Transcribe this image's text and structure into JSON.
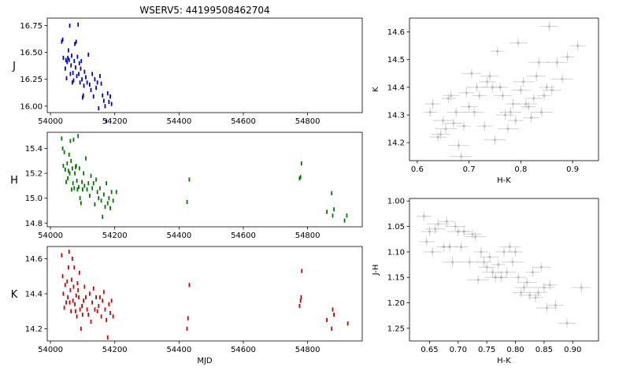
{
  "title": "WSERV5: 44199508462704",
  "chart_data": [
    {
      "id": "lc-j",
      "type": "scatter",
      "ylabel": "J",
      "xlabel": "",
      "color": "#0000cc",
      "xlim": [
        53990,
        54970
      ],
      "ylim": [
        16.82,
        15.94
      ],
      "inverted_y": true,
      "xticks": [
        54000,
        54200,
        54400,
        54600,
        54800
      ],
      "yticks": [
        16.0,
        16.25,
        16.5,
        16.75
      ],
      "xticklabels": [
        "54000",
        "54200",
        "54400",
        "54600",
        "54800"
      ],
      "yticklabels": [
        "16.00",
        "16.25",
        "16.50",
        "16.75"
      ],
      "x": [
        54035,
        54038,
        54040,
        54046,
        54048,
        54050,
        54052,
        54054,
        54056,
        54058,
        54060,
        54062,
        54064,
        54066,
        54068,
        54070,
        54072,
        54074,
        54076,
        54078,
        54080,
        54082,
        54084,
        54086,
        54088,
        54090,
        54092,
        54094,
        54096,
        54098,
        54100,
        54102,
        54104,
        54106,
        54110,
        54114,
        54118,
        54122,
        54126,
        54130,
        54134,
        54138,
        54142,
        54146,
        54150,
        54154,
        54158,
        54162,
        54166,
        54170,
        54174,
        54178,
        54182,
        54186,
        54190
      ],
      "y": [
        16.6,
        16.62,
        16.45,
        16.35,
        16.43,
        16.26,
        16.41,
        16.45,
        16.52,
        16.43,
        16.75,
        16.3,
        16.38,
        16.47,
        16.22,
        16.31,
        16.24,
        16.42,
        16.58,
        16.36,
        16.6,
        16.28,
        16.46,
        16.76,
        16.3,
        16.4,
        16.22,
        16.35,
        16.42,
        16.25,
        16.08,
        16.1,
        16.19,
        16.32,
        16.27,
        16.22,
        16.48,
        16.2,
        16.15,
        16.3,
        16.09,
        16.25,
        16.17,
        16.22,
        15.98,
        16.28,
        16.21,
        16.1,
        16.05,
        16.0,
        15.86,
        16.12,
        16.04,
        16.09,
        16.02
      ]
    },
    {
      "id": "lc-h",
      "type": "scatter",
      "ylabel": "H",
      "xlabel": "",
      "color": "#007700",
      "xlim": [
        53990,
        54970
      ],
      "ylim": [
        15.53,
        14.77
      ],
      "inverted_y": true,
      "xticks": [
        54000,
        54200,
        54400,
        54600,
        54800
      ],
      "yticks": [
        14.8,
        15.0,
        15.2,
        15.4
      ],
      "xticklabels": [
        "54000",
        "54200",
        "54400",
        "54600",
        "54800"
      ],
      "yticklabels": [
        "14.8",
        "15.0",
        "15.2",
        "15.4"
      ],
      "x": [
        54035,
        54038,
        54040,
        54043,
        54046,
        54049,
        54052,
        54054,
        54056,
        54058,
        54060,
        54062,
        54064,
        54066,
        54068,
        54070,
        54072,
        54074,
        54076,
        54078,
        54080,
        54082,
        54084,
        54086,
        54088,
        54090,
        54092,
        54095,
        54098,
        54100,
        54103,
        54106,
        54110,
        54114,
        54118,
        54122,
        54126,
        54130,
        54134,
        54138,
        54142,
        54146,
        54150,
        54154,
        54158,
        54162,
        54166,
        54170,
        54174,
        54178,
        54182,
        54186,
        54190,
        54195,
        54205,
        54425,
        54432,
        54775,
        54778,
        54781,
        54860,
        54875,
        54878,
        54882,
        54915,
        54922
      ],
      "y": [
        15.48,
        15.4,
        15.26,
        15.37,
        15.23,
        15.13,
        15.28,
        15.16,
        15.22,
        15.35,
        15.2,
        15.46,
        15.3,
        15.07,
        15.24,
        15.12,
        15.47,
        15.08,
        15.2,
        15.25,
        15.26,
        15.14,
        15.07,
        15.5,
        15.09,
        15.24,
        15.0,
        14.96,
        15.13,
        15.07,
        15.2,
        15.1,
        15.32,
        15.07,
        15.12,
        15.02,
        15.18,
        15.08,
        15.12,
        14.95,
        15.15,
        15.05,
        15.0,
        15.08,
        14.98,
        14.85,
        15.03,
        14.93,
        15.12,
        14.96,
        15.0,
        14.92,
        15.05,
        14.98,
        15.05,
        14.97,
        15.15,
        15.16,
        15.17,
        15.28,
        14.89,
        15.04,
        14.86,
        14.91,
        14.82,
        14.86
      ]
    },
    {
      "id": "lc-k",
      "type": "scatter",
      "ylabel": "K",
      "xlabel": "MJD",
      "color": "#cc0000",
      "xlim": [
        53990,
        54970
      ],
      "ylim": [
        14.67,
        14.13
      ],
      "inverted_y": true,
      "xticks": [
        54000,
        54200,
        54400,
        54600,
        54800
      ],
      "yticks": [
        14.2,
        14.4,
        14.6
      ],
      "xticklabels": [
        "54000",
        "54200",
        "54400",
        "54600",
        "54800"
      ],
      "yticklabels": [
        "14.2",
        "14.4",
        "14.6"
      ],
      "x": [
        54035,
        54038,
        54040,
        54043,
        54046,
        54049,
        54052,
        54054,
        54056,
        54058,
        54060,
        54062,
        54064,
        54066,
        54068,
        54070,
        54072,
        54074,
        54076,
        54078,
        54080,
        54082,
        54084,
        54086,
        54088,
        54090,
        54092,
        54095,
        54098,
        54100,
        54103,
        54106,
        54110,
        54114,
        54118,
        54122,
        54126,
        54130,
        54134,
        54138,
        54142,
        54146,
        54150,
        54154,
        54158,
        54162,
        54166,
        54170,
        54174,
        54178,
        54182,
        54186,
        54190,
        54195,
        54425,
        54428,
        54432,
        54775,
        54778,
        54780,
        54782,
        54860,
        54875,
        54878,
        54882,
        54925
      ],
      "y": [
        14.62,
        14.5,
        14.4,
        14.32,
        14.45,
        14.35,
        14.47,
        14.38,
        14.55,
        14.64,
        14.35,
        14.42,
        14.3,
        14.48,
        14.6,
        14.36,
        14.44,
        14.55,
        14.34,
        14.3,
        14.39,
        14.27,
        14.46,
        14.42,
        14.38,
        14.52,
        14.31,
        14.2,
        14.33,
        14.28,
        14.36,
        14.44,
        14.38,
        14.31,
        14.28,
        14.4,
        14.24,
        14.35,
        14.43,
        14.31,
        14.38,
        14.3,
        14.33,
        14.38,
        14.27,
        14.36,
        14.41,
        14.31,
        14.25,
        14.15,
        14.34,
        14.29,
        14.36,
        14.27,
        14.2,
        14.26,
        14.45,
        14.33,
        14.36,
        14.38,
        14.53,
        14.25,
        14.2,
        14.31,
        14.28,
        14.23
      ]
    },
    {
      "id": "cmd",
      "type": "scatter",
      "xlabel": "H-K",
      "ylabel": "K",
      "color": "#888888",
      "xlim": [
        0.585,
        0.95
      ],
      "ylim": [
        14.65,
        14.135
      ],
      "inverted_y": true,
      "xticks": [
        0.6,
        0.7,
        0.8,
        0.9
      ],
      "yticks": [
        14.2,
        14.3,
        14.4,
        14.5,
        14.6
      ],
      "xticklabels": [
        "0.6",
        "0.7",
        "0.8",
        "0.9"
      ],
      "yticklabels": [
        "14.2",
        "14.3",
        "14.4",
        "14.5",
        "14.6"
      ],
      "x": [
        0.625,
        0.63,
        0.64,
        0.645,
        0.65,
        0.655,
        0.66,
        0.665,
        0.67,
        0.675,
        0.68,
        0.685,
        0.69,
        0.695,
        0.7,
        0.705,
        0.71,
        0.715,
        0.72,
        0.73,
        0.735,
        0.74,
        0.745,
        0.75,
        0.755,
        0.76,
        0.765,
        0.77,
        0.775,
        0.78,
        0.785,
        0.79,
        0.795,
        0.8,
        0.805,
        0.81,
        0.815,
        0.82,
        0.825,
        0.83,
        0.835,
        0.84,
        0.845,
        0.85,
        0.855,
        0.86,
        0.87,
        0.88,
        0.89,
        0.91
      ],
      "y": [
        14.31,
        14.34,
        14.22,
        14.23,
        14.28,
        14.25,
        14.36,
        14.37,
        14.27,
        14.31,
        14.19,
        14.15,
        14.26,
        14.38,
        14.33,
        14.45,
        14.31,
        14.4,
        14.37,
        14.26,
        14.42,
        14.44,
        14.4,
        14.21,
        14.53,
        14.4,
        14.37,
        14.3,
        14.25,
        14.31,
        14.34,
        14.28,
        14.56,
        14.39,
        14.42,
        14.34,
        14.33,
        14.29,
        14.36,
        14.44,
        14.49,
        14.31,
        14.37,
        14.4,
        14.62,
        14.39,
        14.49,
        14.43,
        14.51,
        14.55
      ]
    },
    {
      "id": "ccd",
      "type": "scatter",
      "xlabel": "H-K",
      "ylabel": "J-H",
      "color": "#888888",
      "xlim": [
        0.615,
        0.945
      ],
      "ylim": [
        0.995,
        1.275
      ],
      "inverted_y": false,
      "xticks": [
        0.65,
        0.7,
        0.75,
        0.8,
        0.85,
        0.9
      ],
      "yticks": [
        1.0,
        1.05,
        1.1,
        1.15,
        1.2,
        1.25
      ],
      "xticklabels": [
        "0.65",
        "0.70",
        "0.75",
        "0.80",
        "0.85",
        "0.90"
      ],
      "yticklabels": [
        "1.00",
        "1.05",
        "1.10",
        "1.15",
        "1.20",
        "1.25"
      ],
      "x": [
        0.64,
        0.645,
        0.65,
        0.655,
        0.66,
        0.665,
        0.675,
        0.68,
        0.685,
        0.69,
        0.695,
        0.7,
        0.705,
        0.71,
        0.72,
        0.725,
        0.73,
        0.735,
        0.74,
        0.745,
        0.75,
        0.755,
        0.76,
        0.765,
        0.77,
        0.775,
        0.78,
        0.785,
        0.79,
        0.795,
        0.8,
        0.805,
        0.81,
        0.815,
        0.82,
        0.825,
        0.83,
        0.835,
        0.84,
        0.845,
        0.85,
        0.855,
        0.86,
        0.87,
        0.89,
        0.915
      ],
      "y": [
        1.03,
        1.08,
        1.06,
        1.1,
        1.055,
        1.045,
        1.09,
        1.04,
        1.09,
        1.12,
        1.05,
        1.06,
        1.09,
        1.06,
        1.12,
        1.065,
        1.07,
        1.155,
        1.1,
        1.12,
        1.13,
        1.11,
        1.14,
        1.15,
        1.125,
        1.15,
        1.1,
        1.14,
        1.09,
        1.12,
        1.1,
        1.15,
        1.18,
        1.17,
        1.16,
        1.185,
        1.14,
        1.19,
        1.18,
        1.13,
        1.17,
        1.21,
        1.165,
        1.205,
        1.24,
        1.17
      ]
    }
  ]
}
